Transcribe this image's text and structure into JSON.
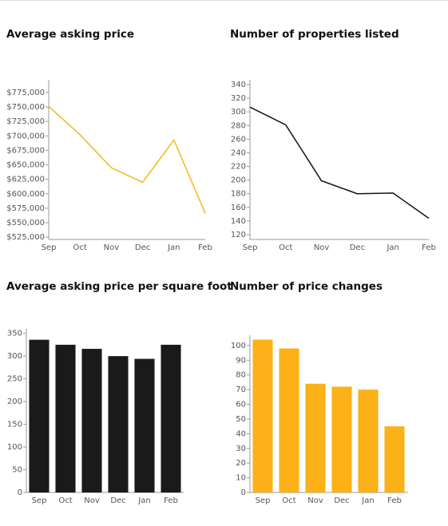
{
  "chart_data": [
    {
      "type": "line",
      "title": "Average asking price",
      "categories": [
        "Sep",
        "Oct",
        "Nov",
        "Dec",
        "Jan",
        "Feb"
      ],
      "values": [
        751000,
        702000,
        645000,
        620000,
        693000,
        566000
      ],
      "color": "#f5b719",
      "ylim": [
        521000,
        797000
      ],
      "yticks": [
        {
          "value": 525000,
          "label": "$525,000"
        },
        {
          "value": 550000,
          "label": "$550,000"
        },
        {
          "value": 575000,
          "label": "$575,000"
        },
        {
          "value": 600000,
          "label": "$600,000"
        },
        {
          "value": 625000,
          "label": "$625,000"
        },
        {
          "value": 650000,
          "label": "$650,000"
        },
        {
          "value": 675000,
          "label": "$675,000"
        },
        {
          "value": 700000,
          "label": "$700,000"
        },
        {
          "value": 725000,
          "label": "$725,000"
        },
        {
          "value": 750000,
          "label": "$750,000"
        },
        {
          "value": 775000,
          "label": "$775,000"
        }
      ]
    },
    {
      "type": "line",
      "title": "Number of properties listed",
      "categories": [
        "Sep",
        "Oct",
        "Nov",
        "Dec",
        "Jan",
        "Feb"
      ],
      "values": [
        307,
        281,
        199,
        180,
        181,
        144
      ],
      "color": "#111111",
      "ylim": [
        113,
        347
      ],
      "yticks": [
        120,
        140,
        160,
        180,
        200,
        220,
        240,
        260,
        280,
        300,
        320,
        340
      ]
    },
    {
      "type": "bar",
      "title": "Average asking price per square foot",
      "categories": [
        "Sep",
        "Oct",
        "Nov",
        "Dec",
        "Jan",
        "Feb"
      ],
      "values": [
        336,
        325,
        316,
        300,
        294,
        325
      ],
      "color": "#1a1a1a",
      "ylim": [
        0,
        360
      ],
      "yticks": [
        0,
        50,
        100,
        150,
        200,
        250,
        300,
        350
      ]
    },
    {
      "type": "bar",
      "title": "Number of price changes",
      "categories": [
        "Sep",
        "Oct",
        "Nov",
        "Dec",
        "Jan",
        "Feb"
      ],
      "values": [
        104,
        98,
        74,
        72,
        70,
        45
      ],
      "color": "#fbb117",
      "ylim": [
        0,
        107
      ],
      "yticks": [
        0,
        10,
        20,
        30,
        40,
        50,
        60,
        70,
        80,
        90,
        100
      ]
    }
  ]
}
